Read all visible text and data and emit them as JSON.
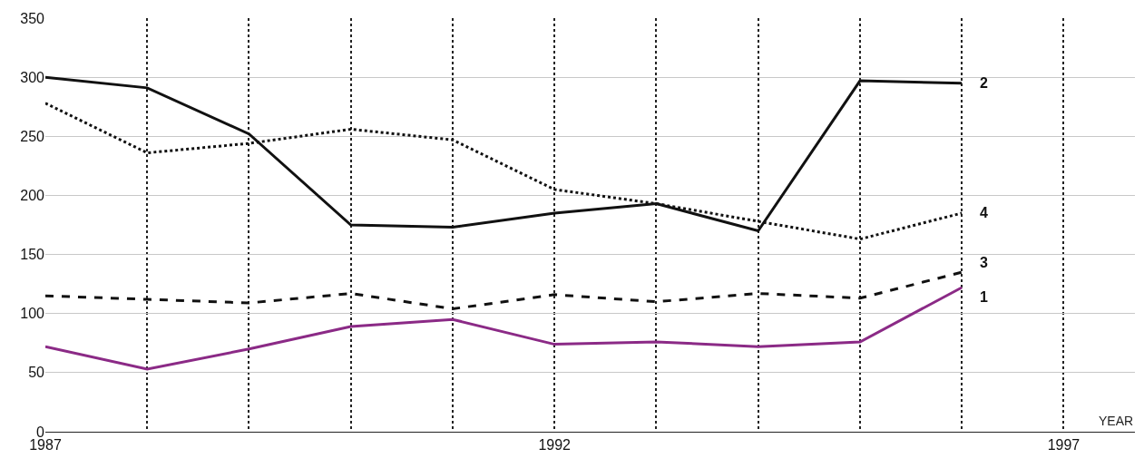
{
  "chart_data": {
    "type": "line",
    "xlabel": "YEAR",
    "x": [
      1987,
      1988,
      1989,
      1990,
      1991,
      1992,
      1993,
      1994,
      1995,
      1996
    ],
    "series": [
      {
        "name": "2",
        "color": "#111111",
        "line_style": "solid",
        "values": [
          300,
          291,
          252,
          175,
          173,
          185,
          193,
          170,
          297,
          295
        ]
      },
      {
        "name": "4",
        "color": "#111111",
        "line_style": "dotted",
        "values": [
          278,
          236,
          244,
          256,
          247,
          205,
          193,
          178,
          163,
          185
        ]
      },
      {
        "name": "3",
        "color": "#111111",
        "line_style": "dashed",
        "values": [
          115,
          112,
          109,
          117,
          104,
          116,
          110,
          117,
          113,
          135
        ]
      },
      {
        "name": "1",
        "color": "#8b2a86",
        "line_style": "solid",
        "values": [
          72,
          53,
          70,
          89,
          95,
          74,
          76,
          72,
          76,
          122
        ]
      }
    ],
    "xlim": [
      1987,
      1997.7
    ],
    "ylim": [
      0,
      350
    ],
    "xticks": [
      1987,
      {
        "value": 1988,
        "label": null
      },
      {
        "value": 1989,
        "label": null
      },
      {
        "value": 1990,
        "label": null
      },
      {
        "value": 1991,
        "label": null
      },
      1992,
      {
        "value": 1993,
        "label": null
      },
      {
        "value": 1994,
        "label": null
      },
      {
        "value": 1995,
        "label": null
      },
      {
        "value": 1996,
        "label": null
      },
      1997
    ],
    "yticks": [
      0,
      50,
      100,
      150,
      200,
      250,
      300,
      350
    ],
    "grid": true,
    "legend": false,
    "marker": "none"
  }
}
